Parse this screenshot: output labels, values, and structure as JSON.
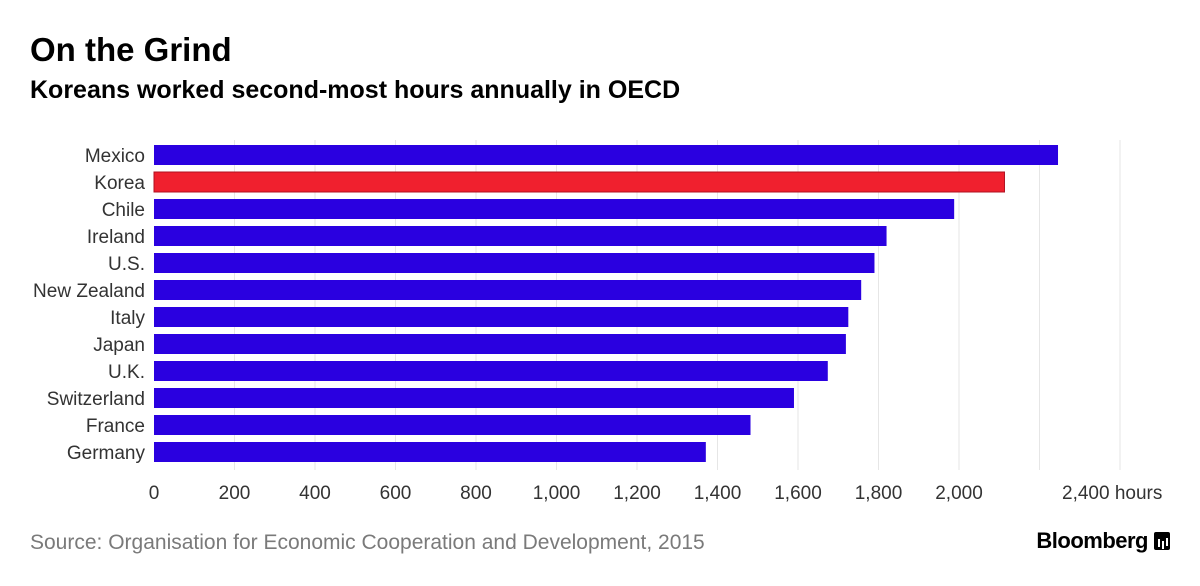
{
  "header": {
    "title": "On the Grind",
    "subtitle": "Koreans worked second-most hours annually in OECD"
  },
  "footer": {
    "source": "Source: Organisation for Economic Cooperation and Development, 2015",
    "brand": "Bloomberg"
  },
  "colors": {
    "bar": "#2a00e0",
    "highlight": "#f0202e",
    "grid": "#e6e6e6"
  },
  "chart_data": {
    "type": "bar",
    "orientation": "horizontal",
    "categories": [
      "Mexico",
      "Korea",
      "Chile",
      "Ireland",
      "U.S.",
      "New Zealand",
      "Italy",
      "Japan",
      "U.K.",
      "Switzerland",
      "France",
      "Germany"
    ],
    "values": [
      2246,
      2113,
      1988,
      1820,
      1790,
      1757,
      1725,
      1719,
      1674,
      1590,
      1482,
      1371
    ],
    "highlight": "Korea",
    "title": "On the Grind",
    "subtitle": "Koreans worked second-most hours annually in OECD",
    "xlabel": "hours",
    "ylabel": "",
    "xlim": [
      0,
      2400
    ],
    "xticks": [
      0,
      200,
      400,
      600,
      800,
      1000,
      1200,
      1400,
      1600,
      1800,
      2000,
      2400
    ],
    "xtick_labels": [
      "0",
      "200",
      "400",
      "600",
      "800",
      "1,000",
      "1,200",
      "1,400",
      "1,600",
      "1,800",
      "2,000",
      "2,400 hours"
    ],
    "grid": true,
    "legend": "none"
  }
}
